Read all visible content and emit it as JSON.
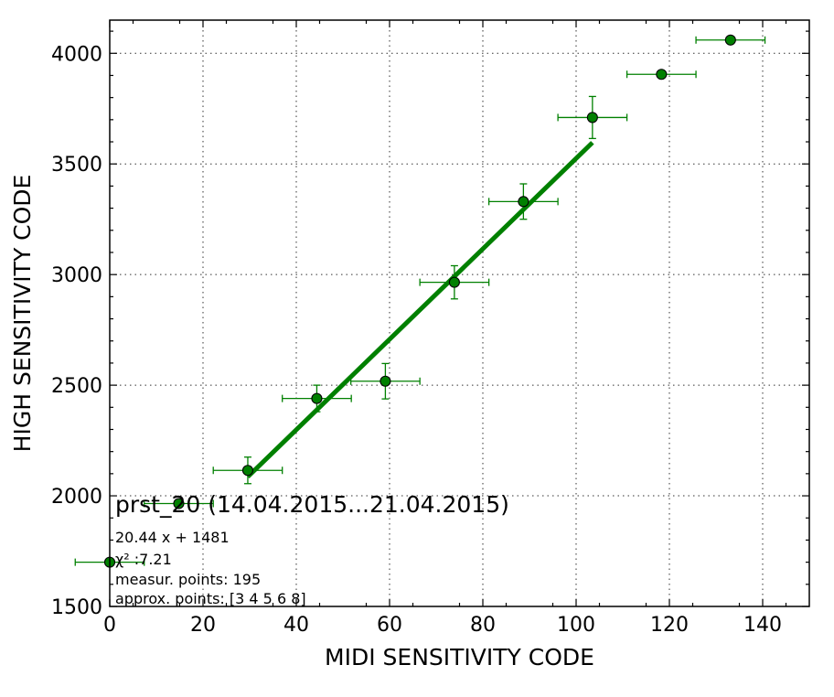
{
  "chart_data": {
    "type": "scatter",
    "xlabel": "MIDI SENSITIVITY CODE",
    "ylabel": "HIGH SENSITIVITY CODE",
    "xlim": [
      0,
      150
    ],
    "ylim": [
      1500,
      4150
    ],
    "x_ticks": [
      0,
      20,
      40,
      60,
      80,
      100,
      120,
      140
    ],
    "y_ticks": [
      1500,
      2000,
      2500,
      3000,
      3500,
      4000
    ],
    "grid": true,
    "points": [
      {
        "x": 0,
        "y": 1700,
        "xerr": 7.4,
        "yerr": 0
      },
      {
        "x": 14.8,
        "y": 1965,
        "xerr": 7.4,
        "yerr": 0
      },
      {
        "x": 29.6,
        "y": 2115,
        "xerr": 7.4,
        "yerr": 60
      },
      {
        "x": 44.4,
        "y": 2440,
        "xerr": 7.4,
        "yerr": 60
      },
      {
        "x": 59.1,
        "y": 2518,
        "xerr": 7.4,
        "yerr": 80
      },
      {
        "x": 73.9,
        "y": 2965,
        "xerr": 7.4,
        "yerr": 75
      },
      {
        "x": 88.7,
        "y": 3330,
        "xerr": 7.4,
        "yerr": 80
      },
      {
        "x": 103.5,
        "y": 3710,
        "xerr": 7.4,
        "yerr": 95
      },
      {
        "x": 118.3,
        "y": 3905,
        "xerr": 7.4,
        "yerr": 0
      },
      {
        "x": 133.1,
        "y": 4060,
        "xerr": 7.4,
        "yerr": 0
      }
    ],
    "fit": {
      "slope": 20.44,
      "intercept": 1481,
      "x_range": [
        29.6,
        103.5
      ]
    },
    "colors": {
      "marker": "#008000",
      "fit_line": "#008000",
      "errorbar": "#008000"
    }
  },
  "annotation": {
    "title": "prst_20 (14.04.2015...21.04.2015)",
    "formula": "20.44 x + 1481",
    "chi2": "χ² :7.21",
    "measur_points": "measur. points: 195",
    "approx_points": "approx. points: [3 4 5 6 8]"
  }
}
